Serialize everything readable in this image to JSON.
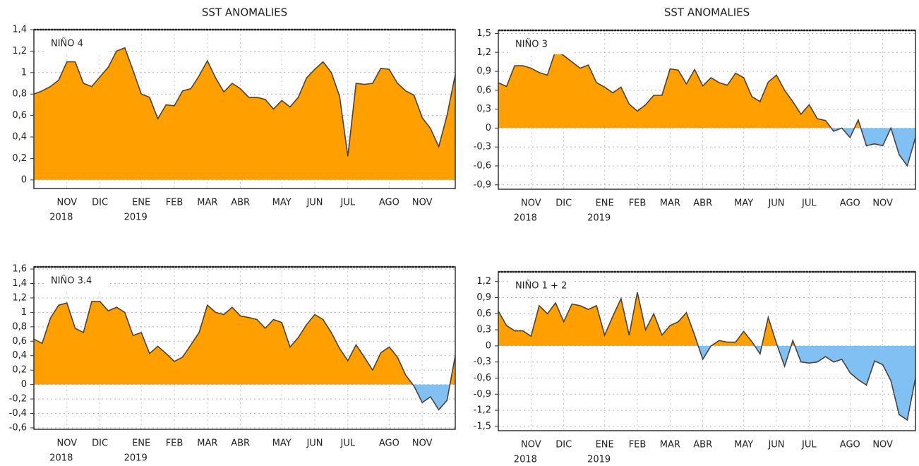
{
  "chart_data": [
    {
      "type": "area",
      "title": "SST ANOMALIES",
      "label": "NIÑO 4",
      "categories": [
        null,
        null,
        null,
        null,
        "NOV",
        null,
        null,
        null,
        "DIC",
        null,
        null,
        null,
        null,
        "ENE",
        null,
        null,
        null,
        "FEB",
        null,
        null,
        null,
        "MAR",
        null,
        null,
        null,
        "ABR",
        null,
        null,
        null,
        null,
        "MAY",
        null,
        null,
        null,
        "JUN",
        null,
        null,
        null,
        "JUL",
        null,
        null,
        null,
        null,
        "AGO",
        null,
        null,
        null,
        "NOV",
        null,
        null,
        null,
        null
      ],
      "years": [
        null,
        null,
        null,
        null,
        "2018",
        null,
        null,
        null,
        null,
        null,
        null,
        null,
        null,
        "2019",
        null,
        null,
        null,
        null,
        null,
        null,
        null,
        null,
        null,
        null,
        null,
        null,
        null,
        null,
        null,
        null,
        null,
        null,
        null,
        null,
        null,
        null,
        null,
        null,
        null,
        null,
        null,
        null,
        null,
        null,
        null,
        null,
        null,
        null,
        null,
        null,
        null,
        null
      ],
      "values": [
        0.8,
        0.83,
        0.87,
        0.93,
        1.1,
        1.1,
        0.9,
        0.87,
        0.96,
        1.05,
        1.2,
        1.23,
        1.02,
        0.8,
        0.77,
        0.57,
        0.7,
        0.69,
        0.83,
        0.85,
        0.97,
        1.11,
        0.95,
        0.82,
        0.9,
        0.85,
        0.77,
        0.77,
        0.75,
        0.66,
        0.74,
        0.68,
        0.77,
        0.95,
        1.03,
        1.1,
        1.0,
        0.78,
        0.22,
        0.9,
        0.89,
        0.9,
        1.04,
        1.03,
        0.9,
        0.83,
        0.79,
        0.58,
        0.48,
        0.31,
        0.6,
        0.98
      ],
      "color": "#ffa000",
      "negative_color": "#80c0f2",
      "line_color": "#444444",
      "ylim": [
        -0.08,
        1.4
      ],
      "yticks": [
        0,
        {
          "value": 0.2,
          "label": "0,2"
        },
        {
          "value": 0.4,
          "label": "0,4"
        },
        {
          "value": 0.6,
          "label": "0,6"
        },
        {
          "value": 0.8,
          "label": "0,8"
        },
        1,
        {
          "value": 1.2,
          "label": "1,2"
        },
        {
          "value": 1.4,
          "label": "1,4"
        }
      ],
      "grid": true
    },
    {
      "type": "area",
      "title": "SST ANOMALIES",
      "label": "NIÑO 3",
      "categories": [
        null,
        null,
        null,
        null,
        "NOV",
        null,
        null,
        null,
        "DIC",
        null,
        null,
        null,
        null,
        "ENE",
        null,
        null,
        null,
        "FEB",
        null,
        null,
        null,
        "MAR",
        null,
        null,
        null,
        "ABR",
        null,
        null,
        null,
        null,
        "MAY",
        null,
        null,
        null,
        "JUN",
        null,
        null,
        null,
        "JUL",
        null,
        null,
        null,
        null,
        "AGO",
        null,
        null,
        null,
        "NOV",
        null,
        null,
        null,
        null
      ],
      "years": [
        null,
        null,
        null,
        null,
        "2018",
        null,
        null,
        null,
        null,
        null,
        null,
        null,
        null,
        "2019",
        null,
        null,
        null,
        null,
        null,
        null,
        null,
        null,
        null,
        null,
        null,
        null,
        null,
        null,
        null,
        null,
        null,
        null,
        null,
        null,
        null,
        null,
        null,
        null,
        null,
        null,
        null,
        null,
        null,
        null,
        null,
        null,
        null,
        null,
        null,
        null,
        null,
        null
      ],
      "values": [
        0.72,
        0.66,
        0.99,
        0.99,
        0.95,
        0.88,
        0.84,
        1.23,
        1.15,
        1.05,
        0.95,
        1.0,
        0.72,
        0.65,
        0.56,
        0.65,
        0.38,
        0.27,
        0.37,
        0.52,
        0.52,
        0.94,
        0.92,
        0.7,
        0.93,
        0.67,
        0.8,
        0.72,
        0.68,
        0.87,
        0.8,
        0.5,
        0.42,
        0.73,
        0.84,
        0.6,
        0.42,
        0.22,
        0.37,
        0.15,
        0.12,
        -0.05,
        0.0,
        -0.15,
        0.13,
        -0.28,
        -0.25,
        -0.28,
        0.0,
        -0.42,
        -0.6,
        -0.15
      ],
      "color": "#ffa000",
      "negative_color": "#80c0f2",
      "line_color": "#444444",
      "ylim": [
        -0.97,
        1.55
      ],
      "yticks": [
        {
          "value": -0.9,
          "label": "-0,9"
        },
        {
          "value": -0.6,
          "label": "-0,6"
        },
        {
          "value": -0.3,
          "label": "-0,3"
        },
        0,
        {
          "value": 0.3,
          "label": "0,3"
        },
        {
          "value": 0.6,
          "label": "0,6"
        },
        {
          "value": 0.9,
          "label": "0,9"
        },
        {
          "value": 1.2,
          "label": "1,2"
        },
        {
          "value": 1.5,
          "label": "1,5"
        }
      ],
      "grid": true
    },
    {
      "type": "area",
      "label": "NIÑO 3.4",
      "categories": [
        null,
        null,
        null,
        null,
        "NOV",
        null,
        null,
        null,
        "DIC",
        null,
        null,
        null,
        null,
        "ENE",
        null,
        null,
        null,
        "FEB",
        null,
        null,
        null,
        "MAR",
        null,
        null,
        null,
        "ABR",
        null,
        null,
        null,
        null,
        "MAY",
        null,
        null,
        null,
        "JUN",
        null,
        null,
        null,
        "JUL",
        null,
        null,
        null,
        null,
        "AGO",
        null,
        null,
        null,
        "NOV",
        null,
        null,
        null,
        null
      ],
      "years": [
        null,
        null,
        null,
        null,
        "2018",
        null,
        null,
        null,
        null,
        null,
        null,
        null,
        null,
        "2019",
        null,
        null,
        null,
        null,
        null,
        null,
        null,
        null,
        null,
        null,
        null,
        null,
        null,
        null,
        null,
        null,
        null,
        null,
        null,
        null,
        null,
        null,
        null,
        null,
        null,
        null,
        null,
        null,
        null,
        null,
        null,
        null,
        null,
        null,
        null,
        null,
        null,
        null
      ],
      "values": [
        0.63,
        0.57,
        0.92,
        1.1,
        1.13,
        0.78,
        0.72,
        1.15,
        1.15,
        1.02,
        1.07,
        1.0,
        0.68,
        0.72,
        0.43,
        0.53,
        0.43,
        0.32,
        0.38,
        0.55,
        0.72,
        1.1,
        1.0,
        0.97,
        1.07,
        0.95,
        0.93,
        0.9,
        0.78,
        0.9,
        0.86,
        0.52,
        0.65,
        0.83,
        0.97,
        0.9,
        0.72,
        0.5,
        0.33,
        0.55,
        0.38,
        0.2,
        0.44,
        0.52,
        0.38,
        0.13,
        -0.02,
        -0.25,
        -0.17,
        -0.35,
        -0.22,
        0.4
      ],
      "color": "#ffa000",
      "negative_color": "#80c0f2",
      "line_color": "#444444",
      "ylim": [
        -0.62,
        1.63
      ],
      "yticks": [
        {
          "value": -0.6,
          "label": "-0,6"
        },
        {
          "value": -0.4,
          "label": "-0,4"
        },
        {
          "value": -0.2,
          "label": "-0,2"
        },
        0,
        {
          "value": 0.2,
          "label": "0,2"
        },
        {
          "value": 0.4,
          "label": "0,4"
        },
        {
          "value": 0.6,
          "label": "0,6"
        },
        {
          "value": 0.8,
          "label": "0,8"
        },
        1,
        {
          "value": 1.2,
          "label": "1,2"
        },
        {
          "value": 1.4,
          "label": "1,4"
        },
        {
          "value": 1.6,
          "label": "1,6"
        }
      ],
      "grid": true
    },
    {
      "type": "area",
      "label": "NIÑO 1 + 2",
      "categories": [
        null,
        null,
        null,
        null,
        "NOV",
        null,
        null,
        null,
        "DIC",
        null,
        null,
        null,
        null,
        "ENE",
        null,
        null,
        null,
        "FEB",
        null,
        null,
        null,
        "MAR",
        null,
        null,
        null,
        "ABR",
        null,
        null,
        null,
        null,
        "MAY",
        null,
        null,
        null,
        "JUN",
        null,
        null,
        null,
        "JUL",
        null,
        null,
        null,
        null,
        "AGO",
        null,
        null,
        null,
        "NOV",
        null,
        null,
        null,
        null
      ],
      "years": [
        null,
        null,
        null,
        null,
        "2018",
        null,
        null,
        null,
        null,
        null,
        null,
        null,
        null,
        "2019",
        null,
        null,
        null,
        null,
        null,
        null,
        null,
        null,
        null,
        null,
        null,
        null,
        null,
        null,
        null,
        null,
        null,
        null,
        null,
        null,
        null,
        null,
        null,
        null,
        null,
        null,
        null,
        null,
        null,
        null,
        null,
        null,
        null,
        null,
        null,
        null,
        null,
        null
      ],
      "values": [
        0.65,
        0.38,
        0.28,
        0.28,
        0.18,
        0.75,
        0.6,
        0.8,
        0.45,
        0.78,
        0.75,
        0.68,
        0.75,
        0.2,
        0.55,
        0.88,
        0.2,
        1.0,
        0.3,
        0.6,
        0.2,
        0.38,
        0.45,
        0.62,
        0.2,
        -0.25,
        0.0,
        0.1,
        0.07,
        0.07,
        0.27,
        0.08,
        -0.15,
        0.53,
        0.05,
        -0.38,
        0.1,
        -0.3,
        -0.32,
        -0.3,
        -0.2,
        -0.3,
        -0.25,
        -0.5,
        -0.63,
        -0.73,
        -0.28,
        -0.35,
        -0.65,
        -1.28,
        -1.38,
        -0.6
      ],
      "color": "#ffa000",
      "negative_color": "#80c0f2",
      "line_color": "#444444",
      "ylim": [
        -1.58,
        1.38
      ],
      "yticks": [
        {
          "value": -1.5,
          "label": "-1,5"
        },
        {
          "value": -1.2,
          "label": "-1,2"
        },
        {
          "value": -0.9,
          "label": "-0,9"
        },
        {
          "value": -0.6,
          "label": "-0,6"
        },
        {
          "value": -0.3,
          "label": "-0,3"
        },
        0,
        {
          "value": 0.3,
          "label": "0,3"
        },
        {
          "value": 0.6,
          "label": "0,6"
        },
        {
          "value": 0.9,
          "label": "0,9"
        },
        {
          "value": 1.2,
          "label": "1,2"
        }
      ],
      "grid": true
    }
  ]
}
